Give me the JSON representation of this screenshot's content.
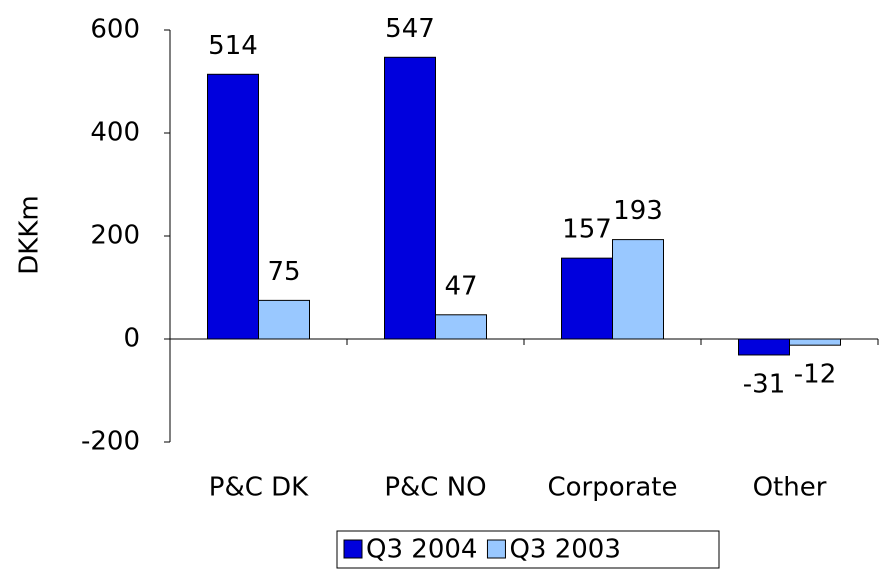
{
  "chart_data": {
    "type": "bar",
    "ylabel": "DKKm",
    "categories": [
      "P&C DK",
      "P&C NO",
      "Corporate",
      "Other"
    ],
    "series": [
      {
        "name": "Q3 2004",
        "color": "#0000dd",
        "values": [
          514,
          547,
          157,
          -31
        ]
      },
      {
        "name": "Q3 2003",
        "color": "#99c8ff",
        "values": [
          75,
          47,
          193,
          -12
        ]
      }
    ],
    "ylim": [
      -200,
      600
    ],
    "yticks": [
      -200,
      0,
      200,
      400,
      600
    ],
    "grid": false,
    "legend": "bottom"
  }
}
